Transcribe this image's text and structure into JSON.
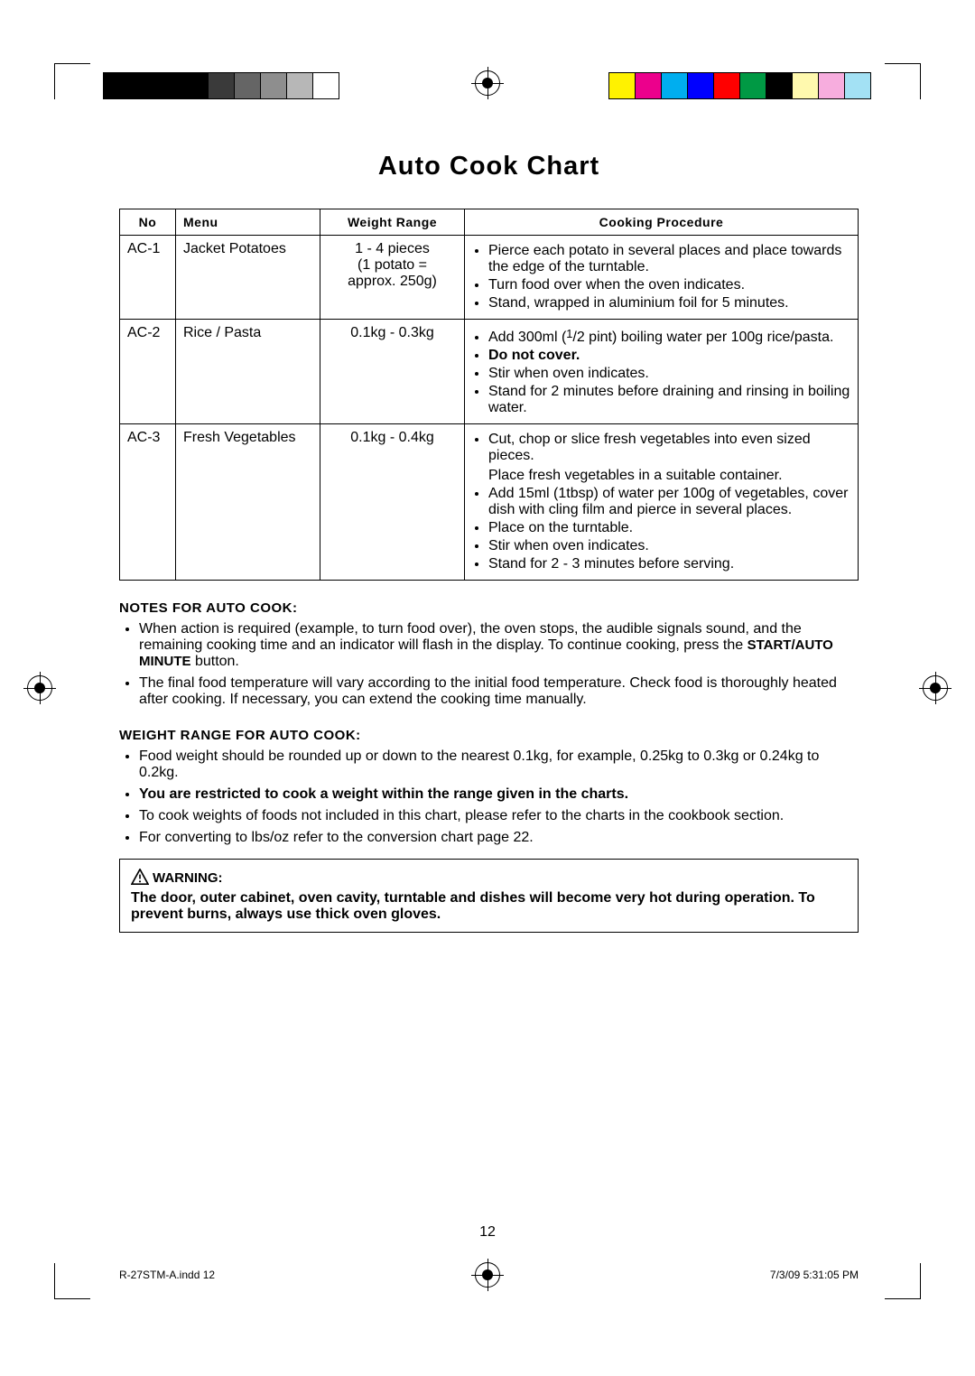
{
  "title": "Auto Cook Chart",
  "table": {
    "headers": {
      "no": "No",
      "menu": "Menu",
      "weight": "Weight Range",
      "proc": "Cooking Procedure"
    },
    "rows": [
      {
        "no": "AC-1",
        "menu": "Jacket Potatoes",
        "weight_line1": "1 - 4 pieces",
        "weight_line2": "(1 potato =",
        "weight_line3": "approx. 250g)",
        "proc": [
          "Pierce each potato in several places and place towards the edge of the turntable.",
          "Turn food over when the oven indicates.",
          "Stand, wrapped in aluminium foil for 5 minutes."
        ]
      },
      {
        "no": "AC-2",
        "menu": "Rice / Pasta",
        "weight_line1": "0.1kg - 0.3kg",
        "proc_html": "ac2"
      },
      {
        "no": "AC-3",
        "menu": "Fresh Vegetables",
        "weight_line1": "0.1kg - 0.4kg",
        "proc_html": "ac3"
      }
    ]
  },
  "ac2": {
    "i1a": "Add 300ml (",
    "i1b": "1",
    "i1c": "/2 pint) boiling water per 100g rice/pasta.",
    "i2": "Do not cover.",
    "i3": "Stir when oven indicates.",
    "i4": "Stand for 2 minutes before draining and rinsing in boiling water."
  },
  "ac3": {
    "i1": "Cut, chop or slice fresh vegetables into even sized pieces.",
    "i1b": "Place fresh vegetables in a suitable container.",
    "i2": "Add 15ml (1tbsp) of water per 100g of vegetables, cover dish with cling film and pierce in several places.",
    "i3": "Place on the turntable.",
    "i4": "Stir when oven indicates.",
    "i5": "Stand for 2 - 3 minutes before serving."
  },
  "notes1": {
    "heading": "NOTES FOR AUTO COOK:",
    "i1a": "When action is required (example, to turn food over), the oven stops, the audible signals sound, and the remaining cooking time and an indicator will flash in the display. To continue cooking, press the ",
    "i1b": "START/AUTO MINUTE",
    "i1c": " button.",
    "i2": "The final food temperature will vary according to the initial food temperature. Check food is thoroughly heated after cooking. If necessary, you can extend the cooking time manually."
  },
  "notes2": {
    "heading": "WEIGHT RANGE FOR AUTO COOK:",
    "i1": "Food weight should be rounded up or down to the nearest 0.1kg, for example, 0.25kg to 0.3kg or 0.24kg to 0.2kg.",
    "i2": "You are restricted to cook a weight within the range given in the charts.",
    "i3": "To cook  weights of foods not included in this chart, please refer to the charts in the cookbook section.",
    "i4": "For converting to lbs/oz refer to the conversion chart page 22."
  },
  "warning": {
    "label": "WARNING:",
    "text": "The door, outer cabinet, oven cavity, turntable and dishes will become very hot during operation. To prevent burns, always use thick oven gloves."
  },
  "page_number": "12",
  "footer": {
    "left": "R-27STM-A.indd   12",
    "right": "7/3/09   5:31:05 PM"
  },
  "colorbar_left": [
    "#000000",
    "#000000",
    "#000000",
    "#000000",
    "#3a3a3a",
    "#656565",
    "#8e8e8e",
    "#b7b7b7",
    "#ffffff"
  ],
  "colorbar_right": [
    "#fff200",
    "#ec008c",
    "#00aeef",
    "#0000ff",
    "#ff0000",
    "#009944",
    "#000000",
    "#fff9ae",
    "#f7adde",
    "#a3e1f4"
  ]
}
